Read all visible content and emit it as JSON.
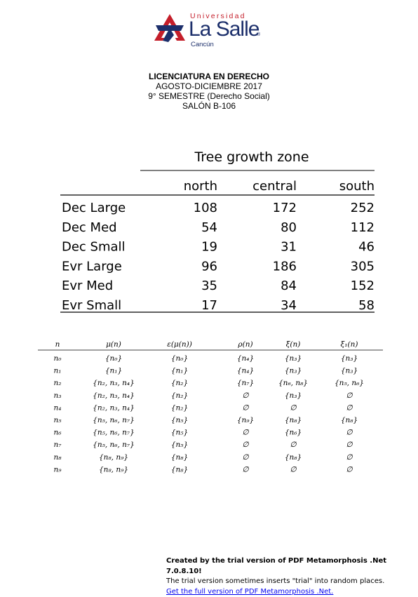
{
  "logo": {
    "line1": "Universidad",
    "line2": "La Salle",
    "reg": "®",
    "line3": "Cancún",
    "colors": {
      "red": "#c41e2a",
      "blue": "#1c2f6b"
    }
  },
  "header": {
    "lines": [
      "LICENCIATURA EN DERECHO",
      "AGOSTO-DICIEMBRE 2017",
      "9° SEMESTRE (Derecho Social)",
      "SALÓN B-106"
    ]
  },
  "tree_table": {
    "title": "Tree growth zone",
    "columns": [
      "north",
      "central",
      "south"
    ],
    "rows": [
      {
        "label": "Dec Large",
        "values": [
          "108",
          "172",
          "252"
        ]
      },
      {
        "label": "Dec Med",
        "values": [
          "54",
          "80",
          "112"
        ]
      },
      {
        "label": "Dec Small",
        "values": [
          "19",
          "31",
          "46"
        ]
      },
      {
        "label": "Evr Large",
        "values": [
          "96",
          "186",
          "305"
        ]
      },
      {
        "label": "Evr Med",
        "values": [
          "35",
          "84",
          "152"
        ]
      },
      {
        "label": "Evr Small",
        "values": [
          "17",
          "34",
          "58"
        ]
      }
    ]
  },
  "node_table": {
    "headers": [
      "n",
      "μ(n)",
      "ε(μ(n))",
      "ρ(n)",
      "ξ(n)",
      "ξ₁(n)"
    ],
    "rows": [
      [
        "n₀",
        "{n₀}",
        "{n₀}",
        "{n₄}",
        "{n₃}",
        "{n₃}"
      ],
      [
        "n₁",
        "{n₁}",
        "{n₁}",
        "{n₄}",
        "{n₃}",
        "{n₃}"
      ],
      [
        "n₂",
        "{n₂, n₃, n₄}",
        "{n₂}",
        "{n₇}",
        "{n₆, n₈}",
        "{n₅, n₆}"
      ],
      [
        "n₃",
        "{n₂, n₃, n₄}",
        "{n₂}",
        "∅",
        "{n₃}",
        "∅"
      ],
      [
        "n₄",
        "{n₂, n₃, n₄}",
        "{n₂}",
        "∅",
        "∅",
        "∅"
      ],
      [
        "n₅",
        "{n₅, n₆, n₇}",
        "{n₅}",
        "{n₉}",
        "{n₈}",
        "{n₈}"
      ],
      [
        "n₆",
        "{n₅, n₆, n₇}",
        "{n₅}",
        "∅",
        "{n₆}",
        "∅"
      ],
      [
        "n₇",
        "{n₅, n₆, n₇}",
        "{n₅}",
        "∅",
        "∅",
        "∅"
      ],
      [
        "n₈",
        "{n₈, n₉}",
        "{n₈}",
        "∅",
        "{n₈}",
        "∅"
      ],
      [
        "n₉",
        "{n₈, n₉}",
        "{n₈}",
        "∅",
        "∅",
        "∅"
      ]
    ]
  },
  "footer": {
    "line1": "Created by the trial version of PDF Metamorphosis .Net 7.0.8.10!",
    "line2": "The trial version sometimes inserts \"trial\" into random places.",
    "link": "Get the full version of PDF Metamorphosis .Net."
  }
}
